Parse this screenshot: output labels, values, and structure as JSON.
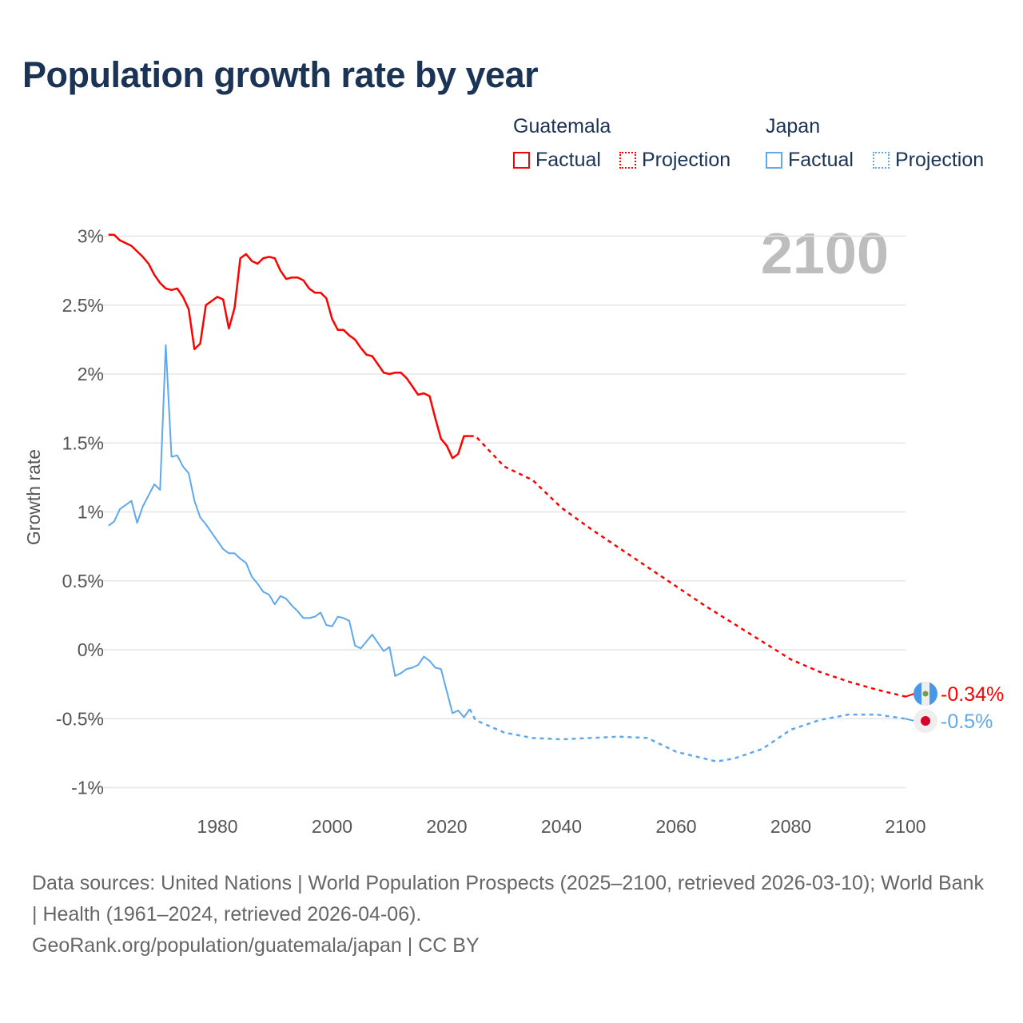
{
  "title": "Population growth rate by year",
  "legend": {
    "groups": [
      {
        "name": "Guatemala",
        "factual": "Factual",
        "projection": "Projection",
        "color": "#ff0000"
      },
      {
        "name": "Japan",
        "factual": "Factual",
        "projection": "Projection",
        "color": "#5fa8ea"
      }
    ]
  },
  "footer": {
    "sources": "Data sources: United Nations | World Population Prospects (2025–2100, retrieved 2026-03-10); World Bank | Health (1961–2024, retrieved 2026-04-06).",
    "credit": "GeoRank.org/population/guatemala/japan | CC BY"
  },
  "chart_data": {
    "type": "line",
    "title": "Population growth rate by year",
    "xlabel": "",
    "ylabel": "Growth rate",
    "year_label": "2100",
    "xlim": [
      1961,
      2100
    ],
    "ylim": [
      -1,
      3
    ],
    "xticks": [
      1980,
      2000,
      2020,
      2040,
      2060,
      2080,
      2100
    ],
    "yticks": [
      {
        "value": 3,
        "label": "3%"
      },
      {
        "value": 2.5,
        "label": "2.5%"
      },
      {
        "value": 2,
        "label": "2%"
      },
      {
        "value": 1.5,
        "label": "1.5%"
      },
      {
        "value": 1,
        "label": "1%"
      },
      {
        "value": 0.5,
        "label": "0.5%"
      },
      {
        "value": 0,
        "label": "0%"
      },
      {
        "value": -0.5,
        "label": "-0.5%"
      },
      {
        "value": -1,
        "label": "-1%"
      }
    ],
    "grid": true,
    "legend_position": "top-right",
    "series": [
      {
        "name": "Guatemala",
        "color": "#ff0000",
        "end_label": "-0.34%",
        "factual_start_year": 1961,
        "factual": [
          3.01,
          3.01,
          2.97,
          2.95,
          2.93,
          2.89,
          2.85,
          2.8,
          2.72,
          2.66,
          2.62,
          2.61,
          2.62,
          2.56,
          2.47,
          2.18,
          2.22,
          2.5,
          2.53,
          2.56,
          2.54,
          2.33,
          2.48,
          2.84,
          2.87,
          2.82,
          2.8,
          2.84,
          2.85,
          2.84,
          2.75,
          2.69,
          2.7,
          2.7,
          2.68,
          2.62,
          2.59,
          2.59,
          2.55,
          2.4,
          2.32,
          2.32,
          2.28,
          2.25,
          2.19,
          2.14,
          2.13,
          2.07,
          2.01,
          2.0,
          2.01,
          2.01,
          1.97,
          1.91,
          1.85,
          1.86,
          1.84,
          1.68,
          1.53,
          1.48,
          1.39,
          1.42,
          1.55,
          1.55
        ],
        "projection": [
          [
            2024,
            1.55
          ],
          [
            2025,
            1.55
          ],
          [
            2030,
            1.33
          ],
          [
            2035,
            1.23
          ],
          [
            2040,
            1.03
          ],
          [
            2045,
            0.88
          ],
          [
            2050,
            0.74
          ],
          [
            2055,
            0.6
          ],
          [
            2060,
            0.46
          ],
          [
            2065,
            0.32
          ],
          [
            2070,
            0.19
          ],
          [
            2075,
            0.06
          ],
          [
            2080,
            -0.07
          ],
          [
            2085,
            -0.16
          ],
          [
            2090,
            -0.23
          ],
          [
            2095,
            -0.29
          ],
          [
            2100,
            -0.34
          ]
        ]
      },
      {
        "name": "Japan",
        "color": "#5fa8ea",
        "end_label": "-0.5%",
        "factual_start_year": 1961,
        "factual": [
          0.9,
          0.93,
          1.02,
          1.05,
          1.08,
          0.92,
          1.04,
          1.12,
          1.2,
          1.16,
          2.21,
          1.4,
          1.41,
          1.33,
          1.28,
          1.08,
          0.96,
          0.91,
          0.85,
          0.79,
          0.73,
          0.7,
          0.7,
          0.66,
          0.63,
          0.53,
          0.48,
          0.42,
          0.4,
          0.33,
          0.39,
          0.37,
          0.32,
          0.28,
          0.23,
          0.23,
          0.24,
          0.27,
          0.18,
          0.17,
          0.24,
          0.23,
          0.21,
          0.03,
          0.01,
          0.06,
          0.11,
          0.05,
          -0.01,
          0.02,
          -0.19,
          -0.17,
          -0.14,
          -0.13,
          -0.11,
          -0.05,
          -0.08,
          -0.13,
          -0.14,
          -0.3,
          -0.46,
          -0.44,
          -0.49,
          -0.43
        ],
        "projection": [
          [
            2024,
            -0.43
          ],
          [
            2025,
            -0.51
          ],
          [
            2030,
            -0.6
          ],
          [
            2035,
            -0.64
          ],
          [
            2040,
            -0.65
          ],
          [
            2045,
            -0.64
          ],
          [
            2050,
            -0.63
          ],
          [
            2055,
            -0.64
          ],
          [
            2060,
            -0.74
          ],
          [
            2065,
            -0.79
          ],
          [
            2067,
            -0.81
          ],
          [
            2070,
            -0.79
          ],
          [
            2075,
            -0.72
          ],
          [
            2080,
            -0.58
          ],
          [
            2085,
            -0.51
          ],
          [
            2090,
            -0.47
          ],
          [
            2095,
            -0.47
          ],
          [
            2100,
            -0.5
          ]
        ]
      }
    ]
  }
}
